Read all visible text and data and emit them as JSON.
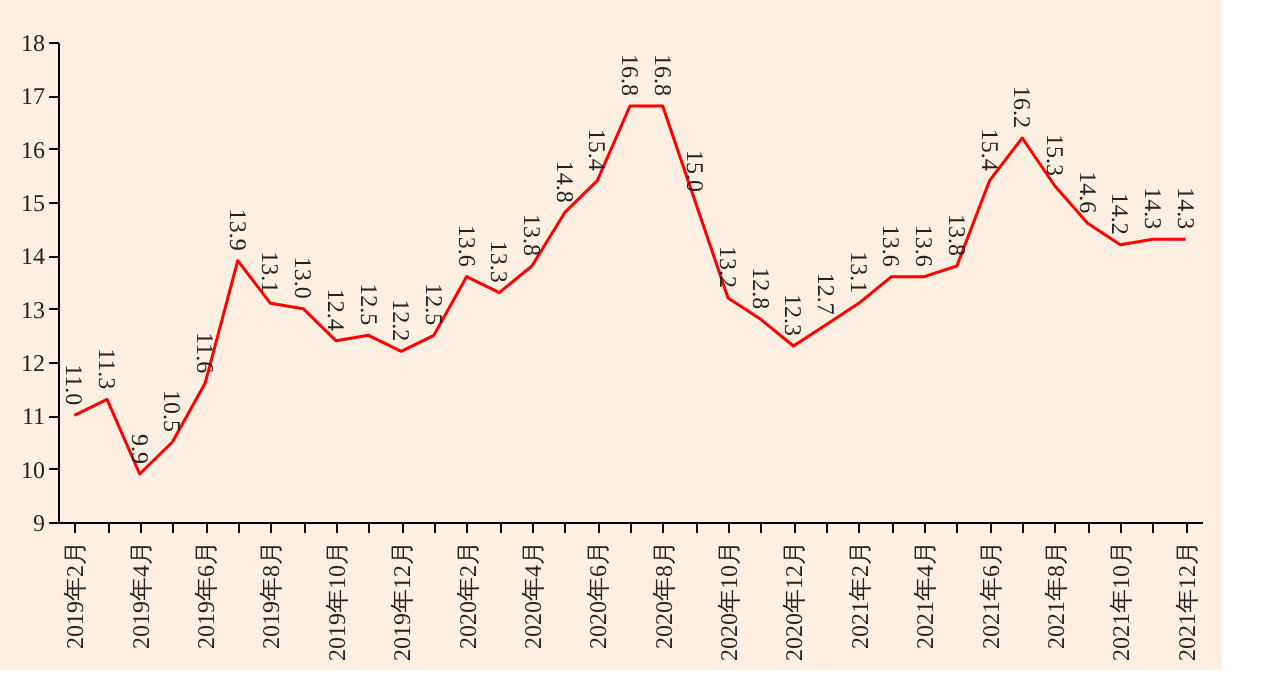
{
  "chart_data": {
    "type": "line",
    "categories": [
      "2019年2月",
      null,
      "2019年4月",
      null,
      "2019年6月",
      null,
      "2019年8月",
      null,
      "2019年10月",
      null,
      "2019年12月",
      null,
      "2020年2月",
      null,
      "2020年4月",
      null,
      "2020年6月",
      null,
      "2020年8月",
      null,
      "2020年10月",
      null,
      "2020年12月",
      null,
      "2021年2月",
      null,
      "2021年4月",
      null,
      "2021年6月",
      null,
      "2021年8月",
      null,
      "2021年10月",
      null,
      "2021年12月"
    ],
    "series": [
      {
        "color": "#ff0000",
        "values": [
          11.0,
          11.3,
          9.9,
          10.5,
          11.6,
          13.9,
          13.1,
          13.0,
          12.4,
          12.5,
          12.2,
          12.5,
          13.6,
          13.3,
          13.8,
          14.8,
          15.4,
          16.8,
          16.8,
          15.0,
          13.2,
          12.8,
          12.3,
          12.7,
          13.1,
          13.6,
          13.6,
          13.8,
          15.4,
          16.2,
          15.3,
          14.6,
          14.2,
          14.3,
          14.3
        ]
      }
    ],
    "ylim": [
      9,
      18
    ],
    "yticks": [
      9,
      10,
      11,
      12,
      13,
      14,
      15,
      16,
      17,
      18
    ],
    "value_labels": [
      "11.0",
      "11.3",
      "9.9",
      "10.5",
      "11.6",
      "13.9",
      "13.1",
      "13.0",
      "12.4",
      "12.5",
      "12.2",
      "12.5",
      "13.6",
      "13.3",
      "13.8",
      "14.8",
      "15.4",
      "16.8",
      "16.8",
      "15.0",
      "13.2",
      "12.8",
      "12.3",
      "12.7",
      "13.1",
      "13.6",
      "13.6",
      "13.8",
      "15.4",
      "16.2",
      "15.3",
      "14.6",
      "14.2",
      "14.3",
      "14.3"
    ],
    "grid": false,
    "legend": false,
    "marker": "none",
    "line_style": "solid"
  }
}
